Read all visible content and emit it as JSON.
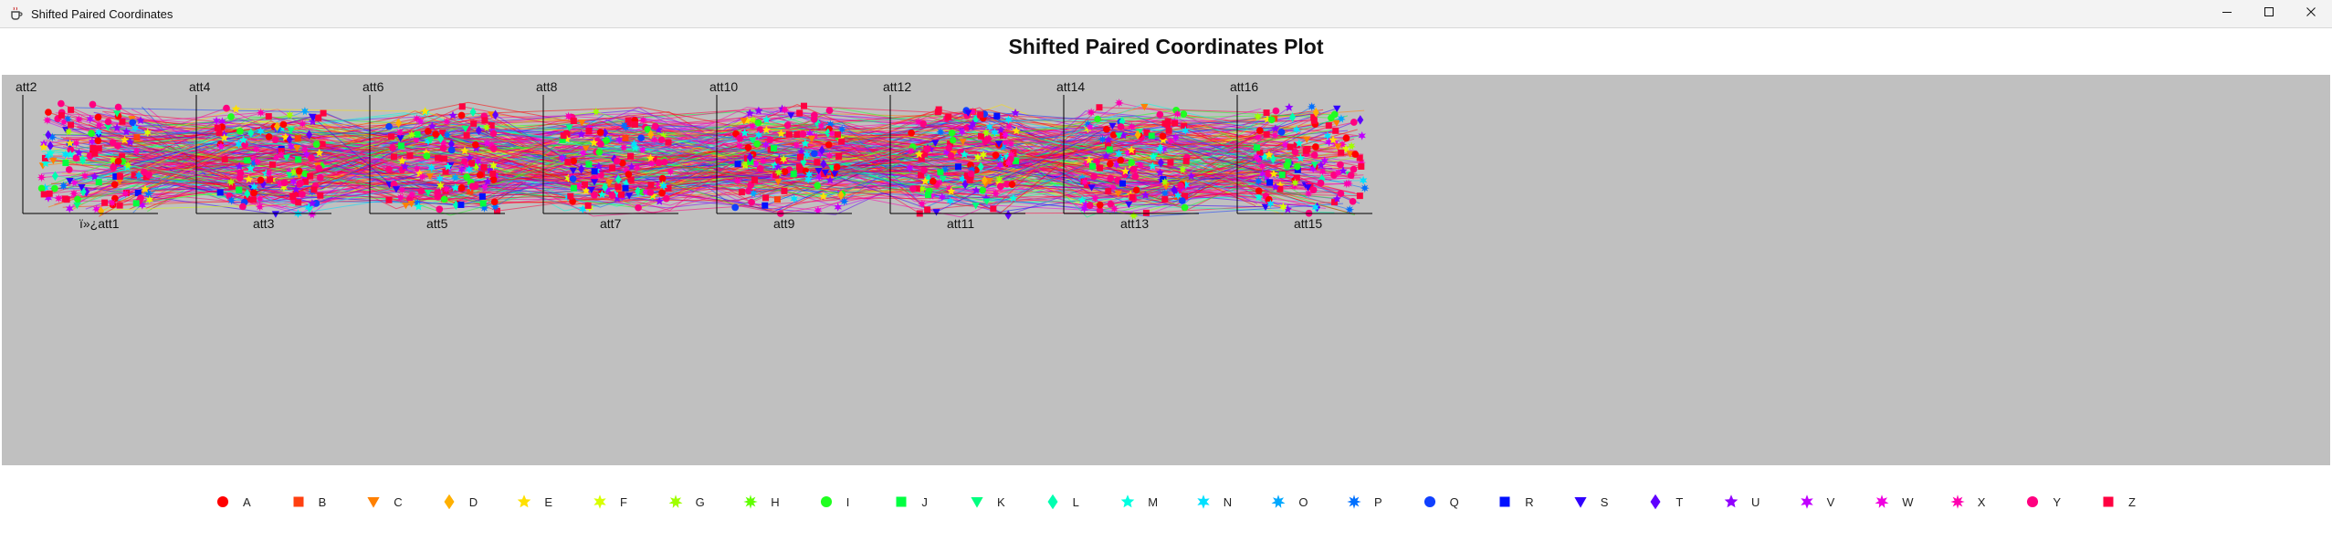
{
  "window": {
    "title": "Shifted Paired Coordinates",
    "icons": {
      "app": "java-cup-icon",
      "minimize": "minimize-icon",
      "maximize": "maximize-icon",
      "close": "close-icon"
    }
  },
  "chart_data": {
    "type": "shifted-paired-coordinates",
    "title": "Shifted Paired Coordinates Plot",
    "background": "#c0c0c0",
    "pairs": [
      {
        "x": "ï»¿att1",
        "y": "att2"
      },
      {
        "x": "att3",
        "y": "att4"
      },
      {
        "x": "att5",
        "y": "att6"
      },
      {
        "x": "att7",
        "y": "att8"
      },
      {
        "x": "att9",
        "y": "att10"
      },
      {
        "x": "att11",
        "y": "att12"
      },
      {
        "x": "att13",
        "y": "att14"
      },
      {
        "x": "att15",
        "y": "att16"
      }
    ],
    "classes": [
      {
        "name": "A",
        "color": "#ff0000",
        "marker": "circle"
      },
      {
        "name": "B",
        "color": "#ff4010",
        "marker": "square"
      },
      {
        "name": "C",
        "color": "#ff8000",
        "marker": "triangle-down"
      },
      {
        "name": "D",
        "color": "#ffb000",
        "marker": "diamond"
      },
      {
        "name": "E",
        "color": "#ffe000",
        "marker": "star5"
      },
      {
        "name": "F",
        "color": "#d8ff00",
        "marker": "star6"
      },
      {
        "name": "G",
        "color": "#a0ff00",
        "marker": "star7"
      },
      {
        "name": "H",
        "color": "#60ff00",
        "marker": "star8"
      },
      {
        "name": "I",
        "color": "#20ff20",
        "marker": "circle"
      },
      {
        "name": "J",
        "color": "#00ff40",
        "marker": "square"
      },
      {
        "name": "K",
        "color": "#00ff80",
        "marker": "triangle-down"
      },
      {
        "name": "L",
        "color": "#00ffb0",
        "marker": "diamond"
      },
      {
        "name": "M",
        "color": "#00ffe0",
        "marker": "star5"
      },
      {
        "name": "N",
        "color": "#00e0ff",
        "marker": "star6"
      },
      {
        "name": "O",
        "color": "#00a8ff",
        "marker": "star7"
      },
      {
        "name": "P",
        "color": "#0070ff",
        "marker": "star8"
      },
      {
        "name": "Q",
        "color": "#1040ff",
        "marker": "circle"
      },
      {
        "name": "R",
        "color": "#0010ff",
        "marker": "square"
      },
      {
        "name": "S",
        "color": "#3000ff",
        "marker": "triangle-down"
      },
      {
        "name": "T",
        "color": "#6000ff",
        "marker": "diamond"
      },
      {
        "name": "U",
        "color": "#9000ff",
        "marker": "star5"
      },
      {
        "name": "V",
        "color": "#c000ff",
        "marker": "star6"
      },
      {
        "name": "W",
        "color": "#f000e0",
        "marker": "star7"
      },
      {
        "name": "X",
        "color": "#ff00b0",
        "marker": "star8"
      },
      {
        "name": "Y",
        "color": "#ff0080",
        "marker": "circle"
      },
      {
        "name": "Z",
        "color": "#ff0040",
        "marker": "square"
      }
    ],
    "legend_position": "bottom"
  }
}
